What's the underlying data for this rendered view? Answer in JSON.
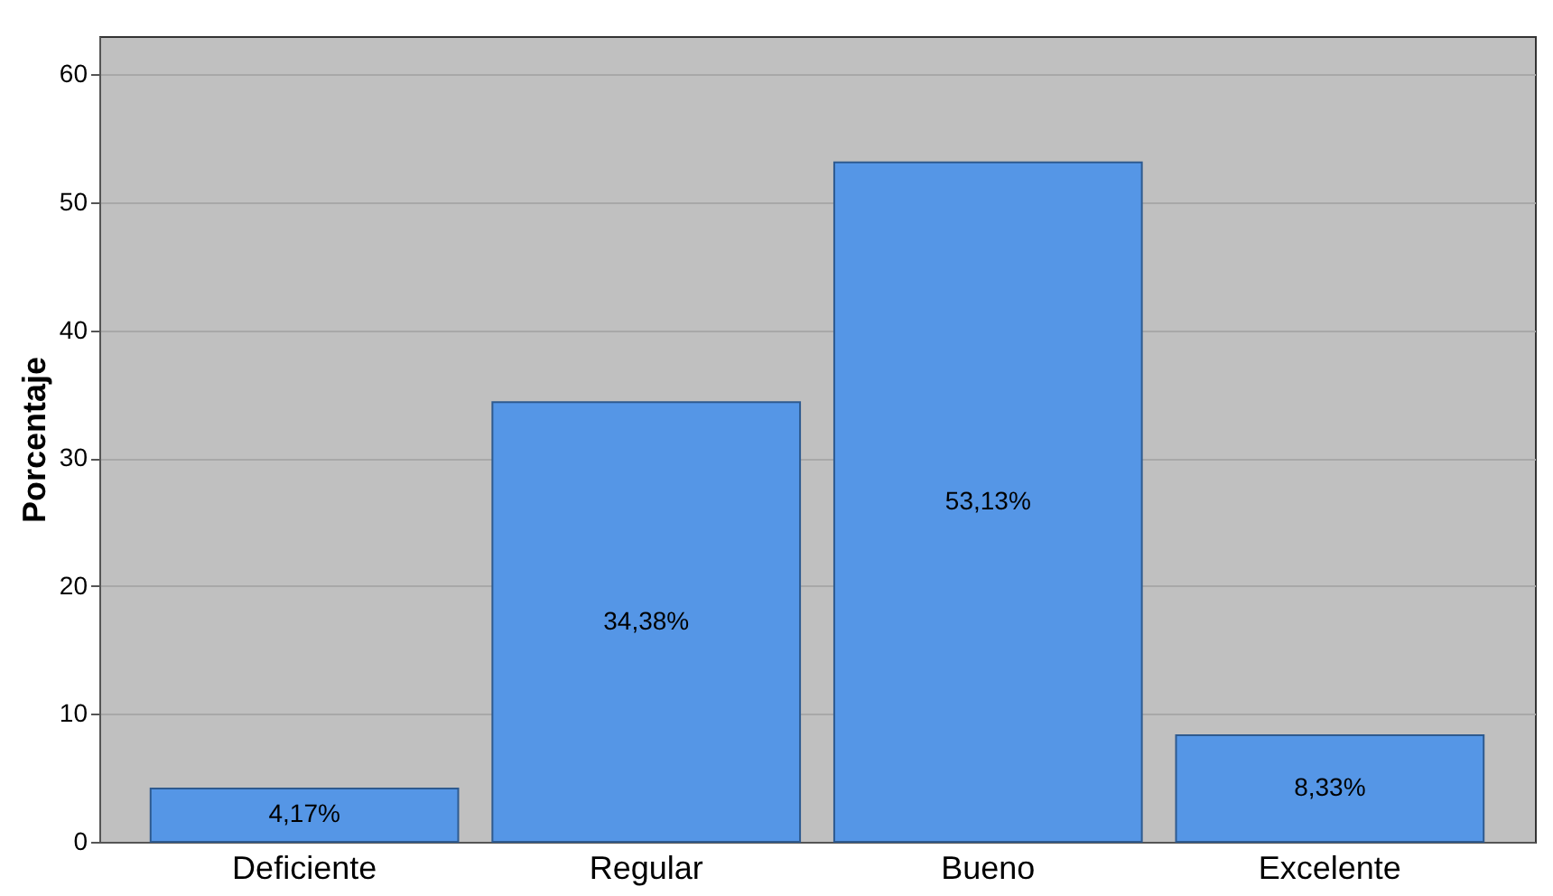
{
  "chart_data": {
    "type": "bar",
    "ylabel": "Porcentaje",
    "categories": [
      "Deficiente",
      "Regular",
      "Bueno",
      "Excelente"
    ],
    "values": [
      4.17,
      34.38,
      53.13,
      8.33
    ],
    "value_labels": [
      "4,17%",
      "34,38%",
      "53,13%",
      "8,33%"
    ],
    "color": "#5596e6",
    "ylim": [
      0,
      63
    ],
    "yticks": [
      0,
      10,
      20,
      30,
      40,
      50,
      60
    ],
    "grid": "y"
  }
}
